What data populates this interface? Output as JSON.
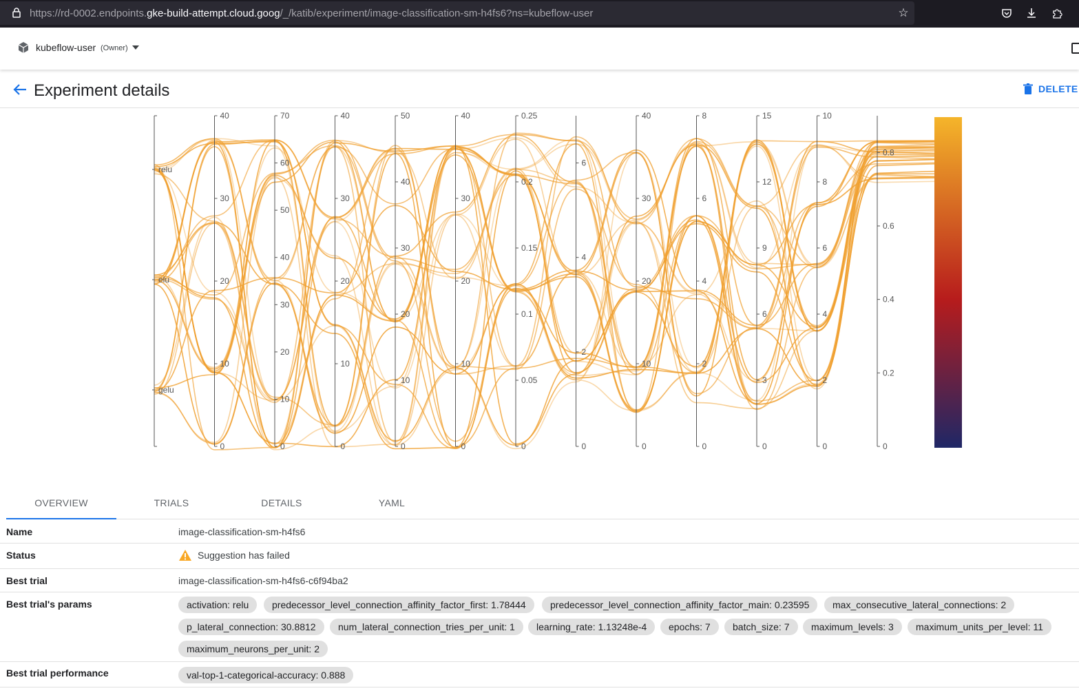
{
  "browser": {
    "url_prefix": "https://rd-0002.endpoints.",
    "url_domain": "gke-build-attempt.cloud.goog",
    "url_path": "/_/katib/experiment/image-classification-sm-h4fs6?ns=kubeflow-user"
  },
  "header": {
    "namespace": "kubeflow-user",
    "role": "(Owner)"
  },
  "page": {
    "title": "Experiment details",
    "delete_label": "DELETE"
  },
  "tabs": [
    "OVERVIEW",
    "TRIALS",
    "DETAILS",
    "YAML"
  ],
  "details": {
    "name_label": "Name",
    "name_value": "image-classification-sm-h4fs6",
    "status_label": "Status",
    "status_value": "Suggestion has failed",
    "best_trial_label": "Best trial",
    "best_trial_value": "image-classification-sm-h4fs6-c6f94ba2",
    "params_label": "Best trial's params",
    "params": [
      "activation: relu",
      "predecessor_level_connection_affinity_factor_first: 1.78444",
      "predecessor_level_connection_affinity_factor_main: 0.23595",
      "max_consecutive_lateral_connections: 2",
      "p_lateral_connection: 30.8812",
      "num_lateral_connection_tries_per_unit: 1",
      "learning_rate: 1.13248e-4",
      "epochs: 7",
      "batch_size: 7",
      "maximum_levels: 3",
      "maximum_units_per_level: 11",
      "maximum_neurons_per_unit: 2"
    ],
    "performance_label": "Best trial performance",
    "performance": [
      "val-top-1-categorical-accuracy: 0.888"
    ]
  },
  "chart_data": {
    "type": "parallel-coordinates",
    "line_color": "#f0a030",
    "colorscale": [
      "#1f2766",
      "#b71c1c",
      "#f5b52a"
    ],
    "axes": [
      {
        "ticks": [],
        "categories": [
          "relu",
          "elu",
          "gelu"
        ],
        "range": [
          0,
          1
        ]
      },
      {
        "ticks": [
          0,
          10,
          20,
          30,
          40
        ],
        "range": [
          0,
          40
        ]
      },
      {
        "ticks": [
          0,
          10,
          20,
          30,
          40,
          50,
          60,
          70
        ],
        "range": [
          0,
          70
        ]
      },
      {
        "ticks": [
          0,
          10,
          20,
          30,
          40
        ],
        "range": [
          0,
          40
        ]
      },
      {
        "ticks": [
          0,
          10,
          20,
          30,
          40,
          50
        ],
        "range": [
          0,
          50
        ]
      },
      {
        "ticks": [
          0,
          10,
          20,
          30,
          40
        ],
        "range": [
          0,
          40
        ]
      },
      {
        "ticks": [
          0,
          0.05,
          0.1,
          0.15,
          0.2,
          0.25
        ],
        "range": [
          0,
          0.25
        ]
      },
      {
        "ticks": [
          0,
          2,
          4,
          6
        ],
        "range": [
          0,
          7
        ]
      },
      {
        "ticks": [
          0,
          10,
          20,
          30,
          40
        ],
        "range": [
          0,
          40
        ]
      },
      {
        "ticks": [
          0,
          2,
          4,
          6,
          8
        ],
        "range": [
          0,
          8
        ]
      },
      {
        "ticks": [
          0,
          3,
          6,
          9,
          12,
          15
        ],
        "range": [
          0,
          15
        ]
      },
      {
        "ticks": [
          0,
          2,
          4,
          6,
          8,
          10
        ],
        "range": [
          0,
          10
        ]
      },
      {
        "ticks": [
          0,
          0.2,
          0.4,
          0.6,
          0.8
        ],
        "range": [
          0,
          0.9
        ]
      }
    ]
  }
}
